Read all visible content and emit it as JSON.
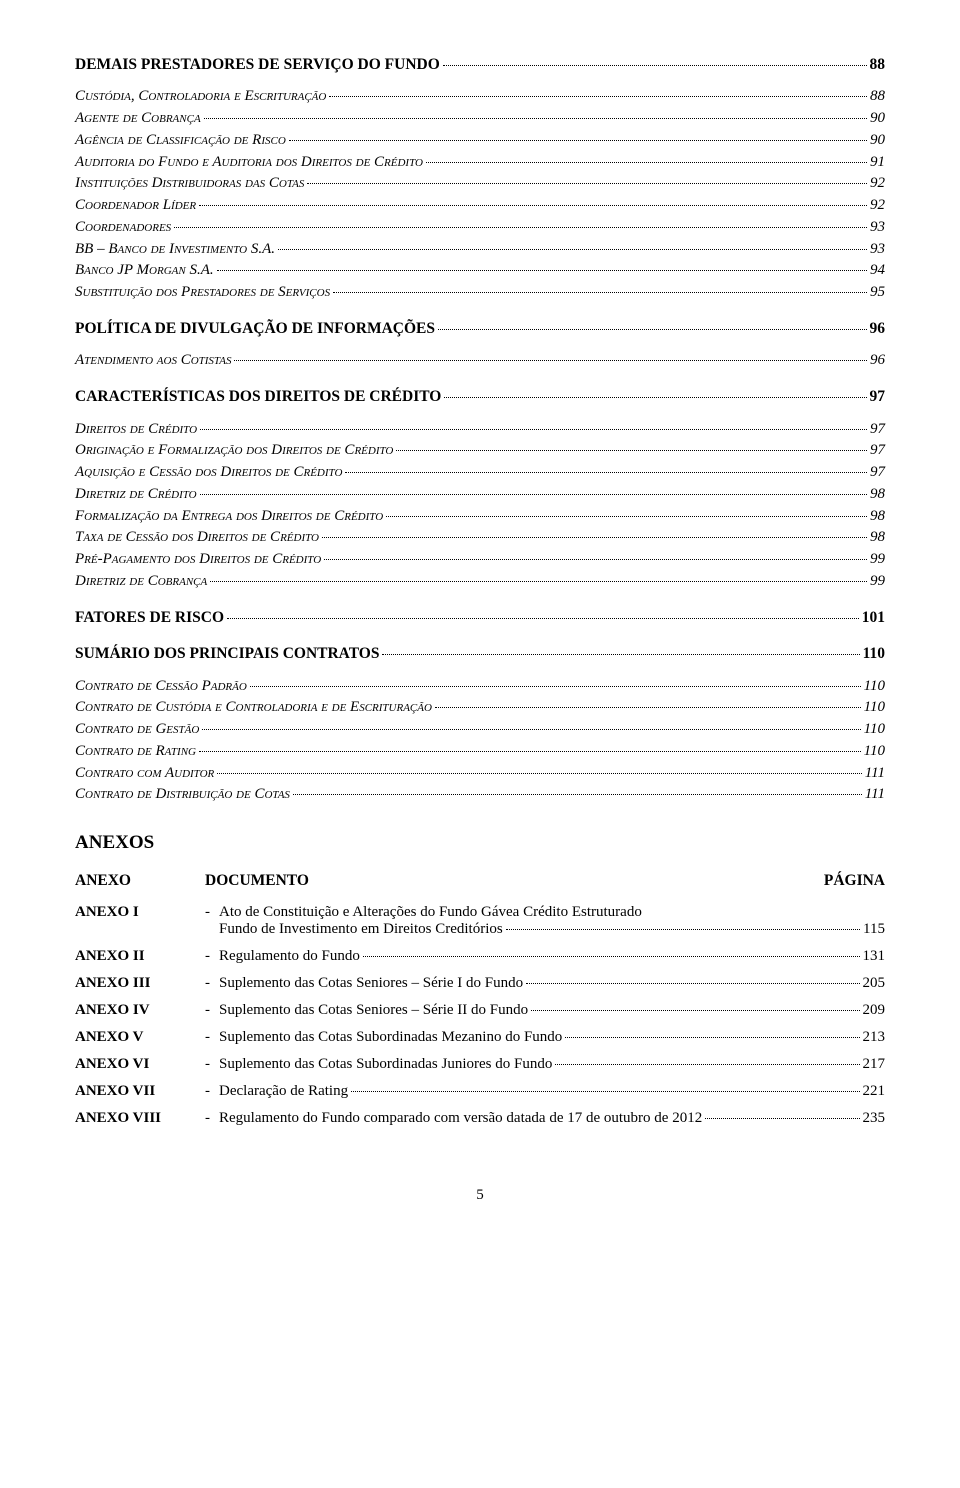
{
  "toc": [
    {
      "level": 0,
      "text": "DEMAIS PRESTADORES DE SERVIÇO DO FUNDO",
      "page": "88"
    },
    {
      "level": 1,
      "text": "Custódia, Controladoria e Escrituração",
      "page": "88"
    },
    {
      "level": 1,
      "text": "Agente de Cobrança",
      "page": "90"
    },
    {
      "level": 1,
      "text": "Agência de Classificação de Risco",
      "page": "90"
    },
    {
      "level": 1,
      "text": "Auditoria do Fundo e Auditoria dos Direitos de Crédito",
      "page": "91"
    },
    {
      "level": 1,
      "text": "Instituições Distribuidoras das Cotas",
      "page": "92"
    },
    {
      "level": 1,
      "text": "Coordenador Líder",
      "page": "92"
    },
    {
      "level": 1,
      "text": "Coordenadores",
      "page": "93"
    },
    {
      "level": 1,
      "text": "BB – Banco de Investimento S.A.",
      "page": "93"
    },
    {
      "level": 1,
      "text": "Banco JP Morgan S.A.",
      "page": "94"
    },
    {
      "level": 1,
      "text": "Substituição dos Prestadores de Serviços",
      "page": "95"
    },
    {
      "level": 0,
      "text": "POLÍTICA DE DIVULGAÇÃO DE INFORMAÇÕES",
      "page": "96"
    },
    {
      "level": 1,
      "text": "Atendimento aos Cotistas",
      "page": "96"
    },
    {
      "level": 0,
      "text": "CARACTERÍSTICAS DOS DIREITOS DE CRÉDITO",
      "page": "97"
    },
    {
      "level": 1,
      "text": "Direitos de Crédito",
      "page": "97"
    },
    {
      "level": 1,
      "text": "Originação e Formalização dos Direitos de Crédito",
      "page": "97"
    },
    {
      "level": 1,
      "text": "Aquisição e Cessão dos Direitos de Crédito",
      "page": "97"
    },
    {
      "level": 1,
      "text": "Diretriz de Crédito",
      "page": "98"
    },
    {
      "level": 1,
      "text": "Formalização da Entrega dos Direitos de Crédito",
      "page": "98"
    },
    {
      "level": 1,
      "text": "Taxa de Cessão dos Direitos de Crédito",
      "page": "98"
    },
    {
      "level": 1,
      "text": "Pré-Pagamento dos Direitos de Crédito",
      "page": "99"
    },
    {
      "level": 1,
      "text": "Diretriz de Cobrança",
      "page": "99"
    },
    {
      "level": 0,
      "text": "FATORES DE RISCO",
      "page": "101"
    },
    {
      "level": 0,
      "text": "SUMÁRIO DOS PRINCIPAIS CONTRATOS",
      "page": "110"
    },
    {
      "level": 1,
      "text": "Contrato de Cessão Padrão",
      "page": "110"
    },
    {
      "level": 1,
      "text": "Contrato de Custódia e Controladoria e de Escrituração",
      "page": "110"
    },
    {
      "level": 1,
      "text": "Contrato de Gestão",
      "page": "110"
    },
    {
      "level": 1,
      "text": "Contrato de Rating",
      "page": "110"
    },
    {
      "level": 1,
      "text": "Contrato com Auditor",
      "page": "111"
    },
    {
      "level": 1,
      "text": "Contrato de Distribuição de Cotas",
      "page": "111"
    }
  ],
  "anexos_heading": "ANEXOS",
  "anexos_header": {
    "col1": "ANEXO",
    "col2": "DOCUMENTO",
    "col3": "PÁGINA"
  },
  "anexos": [
    {
      "label": "ANEXO I",
      "lines": [
        "Ato de Constituição e Alterações do Fundo Gávea Crédito Estruturado",
        "Fundo de Investimento em Direitos Creditórios"
      ],
      "page": "115"
    },
    {
      "label": "ANEXO II",
      "lines": [
        "Regulamento do Fundo"
      ],
      "page": "131"
    },
    {
      "label": "ANEXO III",
      "lines": [
        "Suplemento das Cotas Seniores – Série I do Fundo"
      ],
      "page": "205"
    },
    {
      "label": "ANEXO IV",
      "lines": [
        "Suplemento das Cotas Seniores – Série II do Fundo"
      ],
      "page": "209"
    },
    {
      "label": "ANEXO V",
      "lines": [
        "Suplemento das Cotas Subordinadas Mezanino do Fundo"
      ],
      "page": "213"
    },
    {
      "label": "ANEXO VI",
      "lines": [
        "Suplemento das Cotas Subordinadas Juniores do Fundo"
      ],
      "page": "217"
    },
    {
      "label": "ANEXO VII",
      "lines": [
        "Declaração de Rating"
      ],
      "page": "221"
    },
    {
      "label": "ANEXO VIII",
      "lines": [
        "Regulamento do Fundo comparado com versão datada de 17 de outubro de 2012"
      ],
      "page": "235"
    }
  ],
  "page_number": "5"
}
